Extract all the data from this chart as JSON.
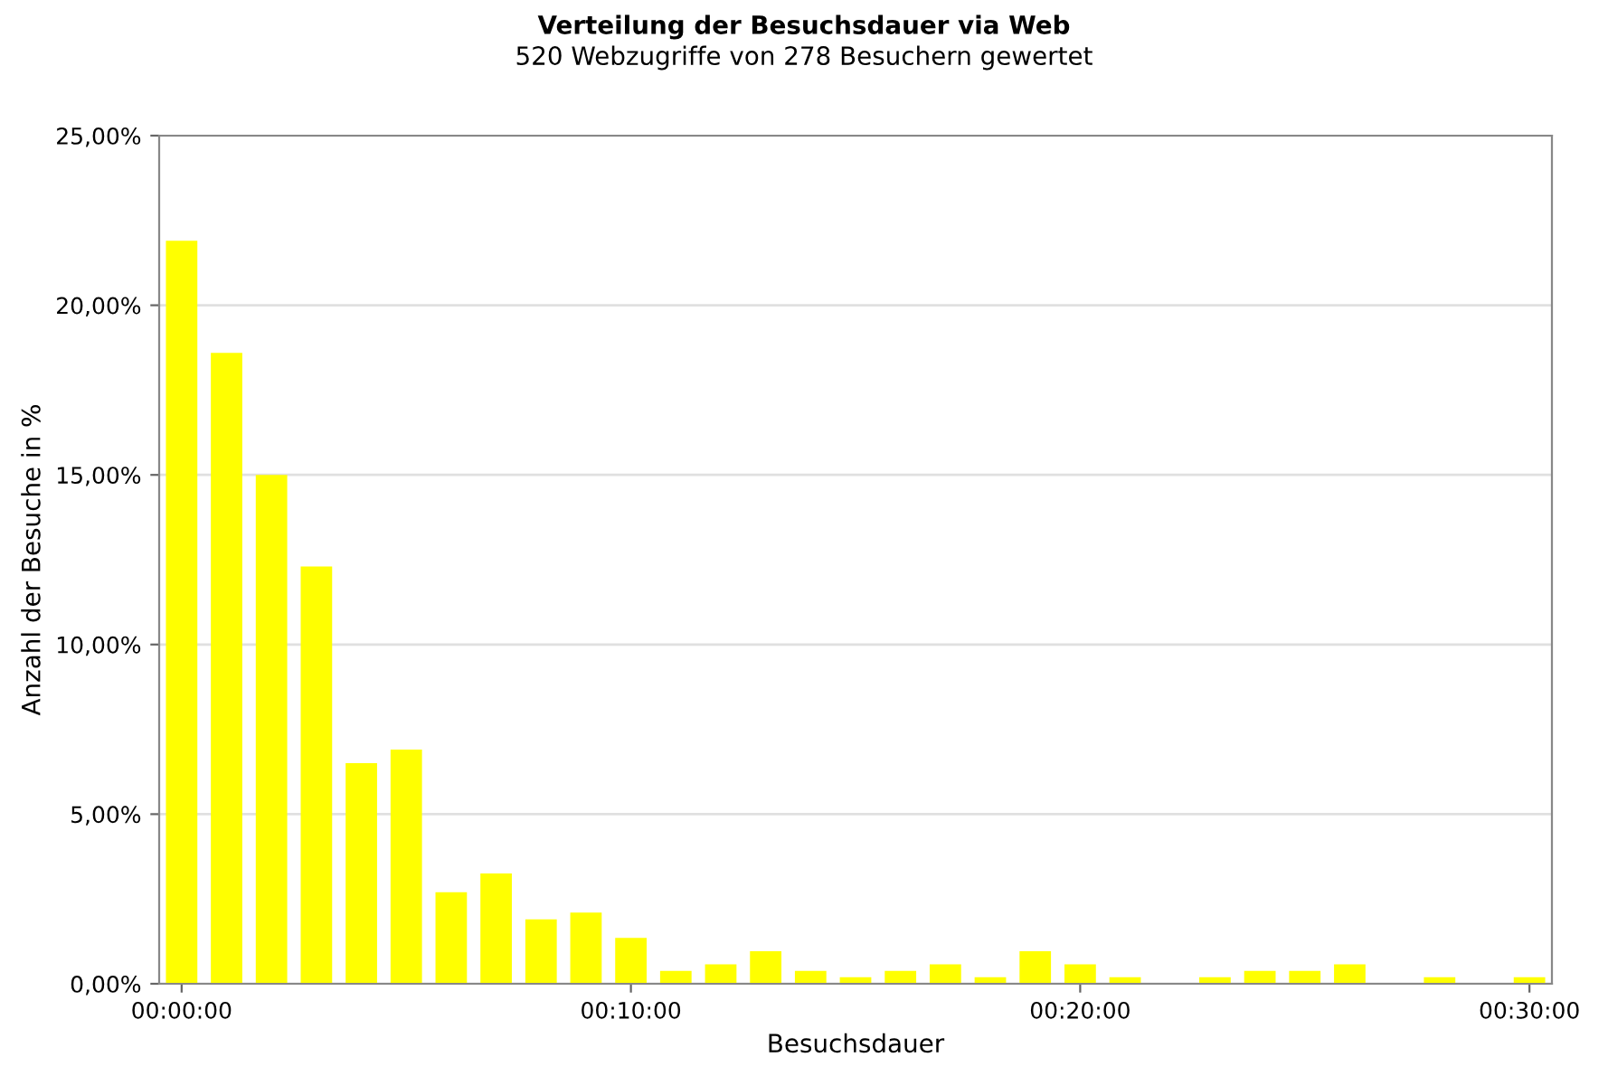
{
  "chart_data": {
    "type": "bar",
    "title": "Verteilung der Besuchsdauer via Web",
    "subtitle": "520 Webzugriffe von 278 Besuchern gewertet",
    "xlabel": "Besuchsdauer",
    "ylabel": "Anzahl der Besuche in %",
    "x": [
      0,
      1,
      2,
      3,
      4,
      5,
      6,
      7,
      8,
      9,
      10,
      11,
      12,
      13,
      14,
      15,
      16,
      17,
      18,
      19,
      20,
      21,
      22,
      23,
      24,
      25,
      26,
      27,
      28,
      29,
      30
    ],
    "values": [
      21.9,
      18.6,
      15.0,
      12.3,
      6.5,
      6.9,
      2.7,
      3.25,
      1.9,
      2.1,
      1.35,
      0.38,
      0.57,
      0.96,
      0.38,
      0.19,
      0.38,
      0.57,
      0.19,
      0.96,
      0.57,
      0.19,
      0,
      0.19,
      0.38,
      0.38,
      0.57,
      0,
      0.19,
      0,
      0.19
    ],
    "color": "#ffff00",
    "xlim": [
      -0.5,
      30.5
    ],
    "xticks": [
      {
        "value": 0,
        "label": "00:00:00"
      },
      {
        "value": 10,
        "label": "00:10:00"
      },
      {
        "value": 20,
        "label": "00:20:00"
      },
      {
        "value": 30,
        "label": "00:30:00"
      }
    ],
    "ylim": [
      0,
      25
    ],
    "yticks": [
      {
        "value": 0,
        "label": "0,00%"
      },
      {
        "value": 5,
        "label": "5,00%"
      },
      {
        "value": 10,
        "label": "10,00%"
      },
      {
        "value": 15,
        "label": "15,00%"
      },
      {
        "value": 20,
        "label": "20,00%"
      },
      {
        "value": 25,
        "label": "25,00%"
      }
    ],
    "grid": "y"
  }
}
